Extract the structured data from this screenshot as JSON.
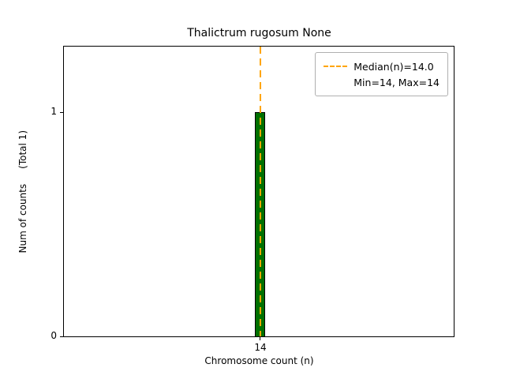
{
  "chart_data": {
    "type": "bar",
    "title": "Thalictrum rugosum None",
    "xlabel": "Chromosome count (n)",
    "ylabel": "Num of counts     (Total 1)",
    "categories": [
      14
    ],
    "values": [
      1
    ],
    "ylim": [
      0,
      1.3
    ],
    "grid": false,
    "bar_color": "#007000",
    "bar_edge_color": "#000000",
    "median_line": {
      "x": 14.0,
      "color": "#ffa500",
      "style": "dashed"
    },
    "yticks": [
      "0",
      "1"
    ],
    "xticks": [
      "14"
    ],
    "legend": {
      "position": "upper right",
      "entries": [
        {
          "label": "Median(n)=14.0",
          "marker": "dashed-line",
          "color": "#ffa500"
        },
        {
          "label": "Min=14, Max=14",
          "marker": "none"
        }
      ]
    }
  }
}
